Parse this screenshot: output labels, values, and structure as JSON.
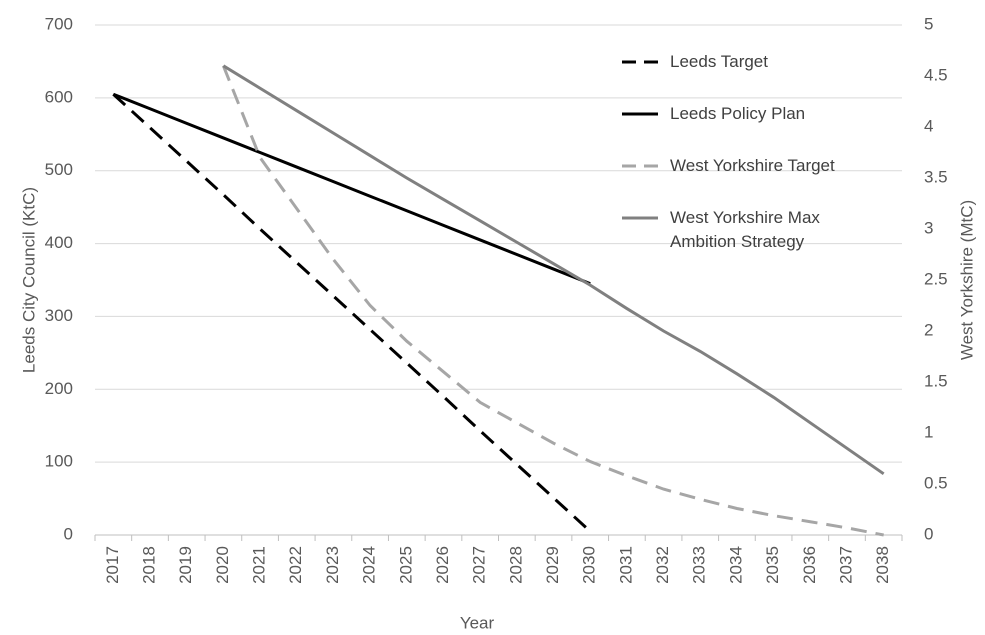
{
  "chart_data": {
    "type": "line",
    "categories": [
      "2017",
      "2018",
      "2019",
      "2020",
      "2021",
      "2022",
      "2023",
      "2024",
      "2025",
      "2026",
      "2027",
      "2028",
      "2029",
      "2030",
      "2031",
      "2032",
      "2033",
      "2034",
      "2035",
      "2036",
      "2037",
      "2038"
    ],
    "series": [
      {
        "name": "Leeds Target",
        "color": "#000000",
        "dashed": true,
        "values": [
          605,
          559,
          513,
          467,
          420,
          374,
          328,
          282,
          236,
          190,
          143,
          97,
          51,
          5,
          null,
          null,
          null,
          null,
          null,
          null,
          null,
          null
        ]
      },
      {
        "name": "Leeds Policy Plan",
        "color": "#000000",
        "dashed": false,
        "values": [
          605,
          585,
          565,
          545,
          525,
          505,
          485,
          465,
          445,
          425,
          405,
          385,
          365,
          345,
          null,
          null,
          null,
          null,
          null,
          null,
          null,
          null
        ]
      },
      {
        "name": "West Yorkshire Target",
        "color": "#a6a6a6",
        "dashed": true,
        "axis": "y2",
        "values": [
          null,
          null,
          null,
          4.6,
          3.7,
          3.2,
          2.7,
          2.25,
          1.9,
          1.6,
          1.3,
          1.1,
          0.9,
          0.72,
          0.58,
          0.45,
          0.35,
          0.26,
          0.19,
          0.13,
          0.07,
          0
        ]
      },
      {
        "name": "West Yorkshire Max Ambition Strategy",
        "color": "#808080",
        "dashed": false,
        "axis": "y2",
        "values": [
          null,
          null,
          null,
          4.6,
          4.38,
          4.16,
          3.94,
          3.72,
          3.5,
          3.29,
          3.08,
          2.87,
          2.66,
          2.45,
          2.22,
          2.0,
          1.8,
          1.58,
          1.35,
          1.1,
          0.85,
          0.6
        ]
      }
    ],
    "xlabel": "Year",
    "ylabel": "Leeds City Council (KtC)",
    "y2label": "West Yorkshire (MtC)",
    "ylim": [
      0,
      700
    ],
    "yticks": [
      0,
      100,
      200,
      300,
      400,
      500,
      600,
      700
    ],
    "y2lim": [
      0,
      5
    ],
    "y2ticks": [
      0,
      0.5,
      1,
      1.5,
      2,
      2.5,
      3,
      3.5,
      4,
      4.5,
      5
    ],
    "grid": true
  }
}
